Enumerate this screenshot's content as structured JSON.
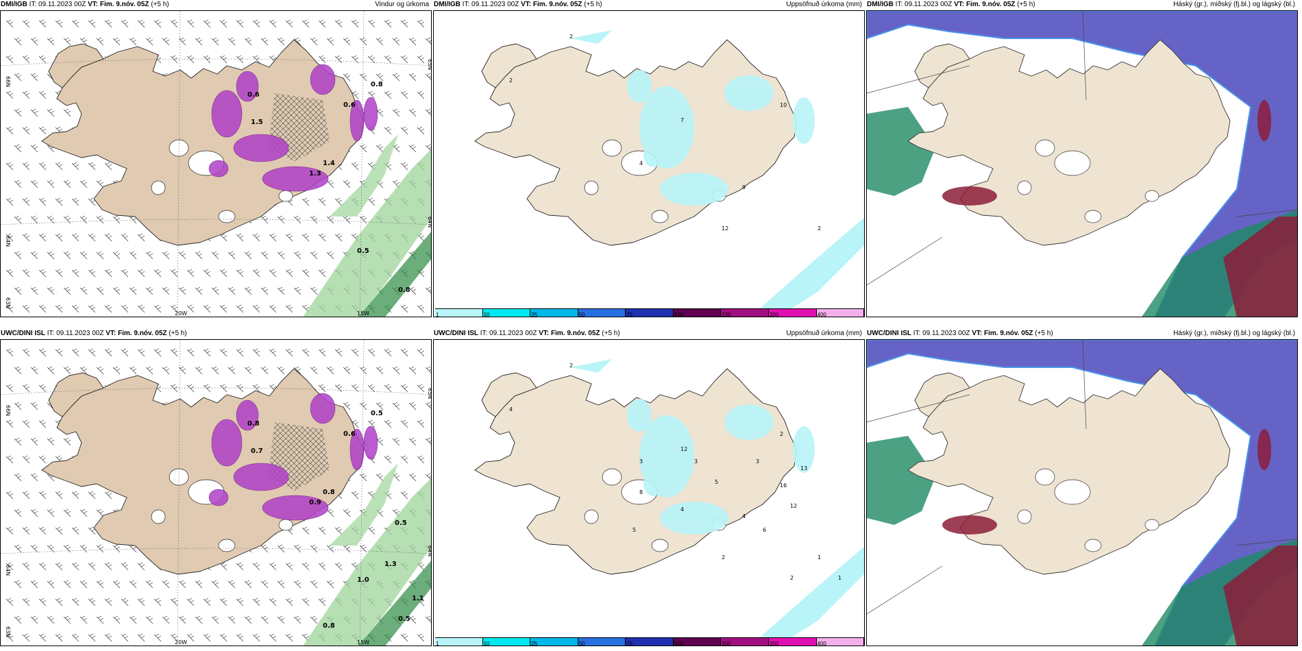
{
  "rows": [
    {
      "model": "DMI/IGB",
      "it_label": "IT:",
      "it_value": "09.11.2023 00Z",
      "vt_label": "VT:",
      "vt_value": "Fim. 9.nóv. 05Z",
      "lead": "(+5 h)",
      "panels": [
        {
          "title": "Vindur og úrkoma",
          "type": "wind",
          "labels": [
            "0.5",
            "1.5",
            "1.4",
            "1.3",
            "0.8",
            "0.8",
            "0.6",
            "0.6"
          ]
        },
        {
          "title": "Uppsöfnuð úrkoma (mm)",
          "type": "precip",
          "labels": [
            "2",
            "2",
            "7",
            "10",
            "4",
            "9",
            "2",
            "12"
          ]
        },
        {
          "title": "Háský (gr.), miðský (fj.bl.) og lágský (bl.)",
          "type": "cloud",
          "labels": []
        }
      ]
    },
    {
      "model": "UWC/DINI ISL",
      "it_label": "IT:",
      "it_value": "09.11.2023 00Z",
      "vt_label": "VT:",
      "vt_value": "Fim. 9.nóv. 05Z",
      "lead": "(+5 h)",
      "panels": [
        {
          "title": "",
          "type": "wind",
          "labels": [
            "1.0",
            "0.7",
            "0.8",
            "0.9",
            "0.5",
            "0.5",
            "0.6",
            "0.8",
            "0.5",
            "1.3",
            "0.8",
            "1.1"
          ]
        },
        {
          "title": "Uppsöfnuð úrkoma (mm)",
          "type": "precip",
          "labels": [
            "2",
            "4",
            "12",
            "2",
            "8",
            "4",
            "1",
            "2",
            "3",
            "5",
            "16",
            "13",
            "12",
            "6",
            "3",
            "4",
            "5",
            "3",
            "2",
            "1"
          ]
        },
        {
          "title": "Háský (gr.), miðský (fj.bl.) og lágský (bl.)",
          "type": "cloud",
          "labels": []
        }
      ]
    }
  ],
  "axes": {
    "lon_labels": [
      "20W",
      "15W"
    ],
    "lat_labels": [
      "66N",
      "64N",
      "63N"
    ],
    "lat_labels_right": [
      "65N",
      "64N"
    ]
  },
  "colorbar": {
    "ticks": [
      "1",
      "10",
      "25",
      "50",
      "75",
      "100",
      "150",
      "200",
      "400"
    ],
    "colors": [
      "#b8f4f8",
      "#00e8f0",
      "#00b8e8",
      "#2870e0",
      "#2030b0",
      "#600050",
      "#a01080",
      "#e010b0",
      "#f4b0ec"
    ]
  },
  "colors": {
    "land": "#efe3d2",
    "wind_land": "#e0cbb2",
    "precip_light": "#b8f4f8",
    "magenta": "#b040c8",
    "green": "#9ed49a",
    "green_dark": "#2e8a44",
    "high_cloud": "#5a56c2",
    "mid_cloud": "#1f8a64",
    "low_cloud": "#8c1d3a",
    "cloud_land": "#efe3d2"
  }
}
